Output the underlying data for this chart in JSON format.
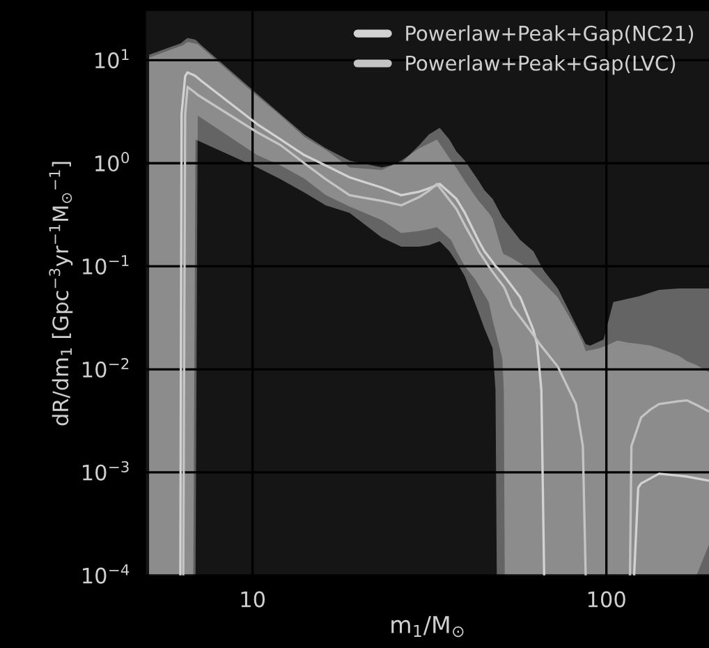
{
  "chart_data": {
    "type": "line",
    "xlabel": "m$_{1}$/M$_{⊙}$",
    "ylabel": "dR/dm$_{1}$ [Gpc$^{−3}$yr$^{−1}$M$_{⊙}$$^{−1}$]",
    "log": "xy",
    "grid": true,
    "legend": "top right",
    "marker": "none",
    "line_style": "solid",
    "xlim": [
      5,
      195
    ],
    "xticks": [
      10,
      100
    ],
    "ylim": [
      0.0001,
      30
    ],
    "yticks": [
      {
        "value": 0.0001,
        "label": "10$^{−4}$"
      },
      {
        "value": 0.001,
        "label": "10$^{−3}$"
      },
      {
        "value": 0.01,
        "label": "10$^{−2}$"
      },
      {
        "value": 0.1,
        "label": "10$^{−1}$"
      },
      {
        "value": 1,
        "label": "10$^{0}$"
      },
      {
        "value": 10,
        "label": "10$^{1}$"
      }
    ],
    "series": [
      {
        "name": "Powerlaw+Peak+Gap(NC21)",
        "color": "#d2d2d2",
        "x": [
          5.1,
          6.25,
          6.3,
          6.45,
          6.55,
          6.8,
          6.9,
          7.16,
          10.3,
          12.0,
          14.0,
          16.1,
          18.8,
          23.2,
          26.3,
          29.6,
          31.5,
          33.8,
          36.0,
          37.7,
          39.8,
          43.6,
          45.2,
          47.7,
          48.6,
          49,
          50.8,
          57.1,
          62.2,
          63.7,
          65.5,
          66.7,
          72.9,
          87.4,
          90,
          98.2,
          104.6,
          119.8,
          123.0,
          125.3,
          140.9,
          159.9,
          168.8,
          195
        ],
        "values": [
          null,
          0.0001,
          3,
          7.0,
          7.6,
          7.2,
          7.0,
          6.3,
          2.4,
          1.7,
          1.2,
          0.95,
          0.73,
          0.58,
          0.49,
          0.53,
          0.57,
          0.63,
          0.52,
          0.45,
          0.33,
          0.175,
          0.14,
          0.11,
          0.1,
          0.098,
          0.085,
          0.05,
          0.024,
          0.0175,
          0.0063,
          0.0001,
          null,
          null,
          null,
          null,
          null,
          0.0001,
          0.00071,
          0.00078,
          0.00097,
          0.00093,
          0.00091,
          0.00083
        ],
        "upper": [
          11.3,
          14.5,
          14.8,
          15.8,
          16.4,
          16.0,
          15.8,
          14,
          4.7,
          3.0,
          1.9,
          1.4,
          1.06,
          0.91,
          1.0,
          1.5,
          1.9,
          2.2,
          1.7,
          1.3,
          1.06,
          0.67,
          0.55,
          0.45,
          0.4,
          0.38,
          0.3,
          0.18,
          0.14,
          0.12,
          0.1,
          0.09,
          0.061,
          0.0175,
          0.017,
          0.0195,
          0.045,
          0.05,
          0.051,
          0.052,
          0.059,
          0.061,
          0.061,
          0.061
        ],
        "lower": [
          0.0001,
          0.0001,
          0.0001,
          0.0001,
          0.0001,
          0.0001,
          1.7,
          1.6,
          0.91,
          0.7,
          0.52,
          0.39,
          0.33,
          0.19,
          0.155,
          0.155,
          0.16,
          0.175,
          0.14,
          0.11,
          0.08,
          0.035,
          0.025,
          0.016,
          0.0063,
          0.0001,
          0.0001,
          0.0001,
          0.0001,
          0.0001,
          0.0001,
          0.0001,
          0.0001,
          0.0001,
          0.0001,
          0.0001,
          0.0001,
          0.0001,
          0.0001,
          0.0001,
          0.0001,
          0.0001,
          0.0001,
          0.0001
        ]
      },
      {
        "name": "Powerlaw+Peak+Gap(LVC)",
        "color": "#c4c4c4",
        "x": [
          5.1,
          6.37,
          6.45,
          6.55,
          6.9,
          7.0,
          10.3,
          12.0,
          14.0,
          16.1,
          18.8,
          23.2,
          26.3,
          29.6,
          31.5,
          33.2,
          36.4,
          37.7,
          39.8,
          42.4,
          43.6,
          46.5,
          47.7,
          50.8,
          51.3,
          51.6,
          54.1,
          60.8,
          64.9,
          72.9,
          82.0,
          85.8,
          87.4,
          95.6,
          100,
          107.5,
          116.6,
          117.7,
          125.3,
          133.5,
          140.9,
          159.9,
          168.8,
          179.9,
          195
        ],
        "values": [
          null,
          0.0001,
          3,
          5.5,
          4.8,
          4.6,
          2.0,
          1.5,
          1.0,
          0.7,
          0.49,
          0.43,
          0.39,
          0.47,
          0.54,
          0.63,
          0.42,
          0.36,
          0.25,
          0.17,
          0.14,
          0.1,
          0.088,
          0.066,
          0.063,
          0.061,
          0.041,
          0.024,
          0.0175,
          0.0106,
          0.0046,
          0.0018,
          0.0001,
          null,
          null,
          null,
          0.0001,
          0.0018,
          0.0034,
          0.0041,
          0.0046,
          0.0049,
          0.005,
          0.0045,
          0.0039
        ],
        "upper": [
          10.6,
          14,
          14.5,
          15,
          14.5,
          14.3,
          4.5,
          2.9,
          1.8,
          1.35,
          0.91,
          0.86,
          1.06,
          1.4,
          1.55,
          1.7,
          1.06,
          0.9,
          0.67,
          0.49,
          0.43,
          0.33,
          0.29,
          0.14,
          0.13,
          0.13,
          0.12,
          0.094,
          0.075,
          0.05,
          0.025,
          0.018,
          0.015,
          0.016,
          0.017,
          0.019,
          0.018,
          0.018,
          0.0175,
          0.017,
          0.016,
          0.0136,
          0.012,
          0.011,
          0.0094
        ],
        "lower": [
          0.0001,
          0.0001,
          0.0001,
          0.0001,
          0.0001,
          2.9,
          1.2,
          0.95,
          0.71,
          0.49,
          0.38,
          0.28,
          0.21,
          0.22,
          0.23,
          0.24,
          0.18,
          0.14,
          0.1,
          0.076,
          0.065,
          0.045,
          0.03,
          0.0128,
          0.0063,
          0.0001,
          0.0001,
          0.0001,
          0.0001,
          0.0001,
          0.0001,
          0.0001,
          0.0001,
          0.0001,
          0.0001,
          0.0001,
          0.0001,
          0.0001,
          0.0001,
          0.0001,
          0.0001,
          0.0001,
          0.0001,
          0.0001,
          0.0002
        ]
      }
    ]
  }
}
